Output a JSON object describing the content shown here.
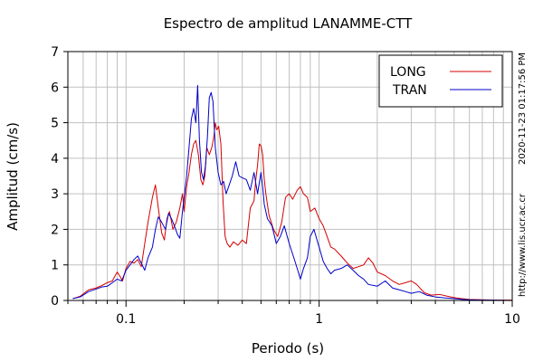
{
  "chart_data": {
    "type": "line",
    "title": "Espectro de amplitud LANAMME-CTT",
    "xlabel": "Periodo (s)",
    "ylabel": "Amplitud (cm/s)",
    "x_scale": "log",
    "xlim": [
      0.05,
      10
    ],
    "ylim": [
      0,
      7
    ],
    "grid": true,
    "legend_placement": "top-right",
    "x_ticks": [
      {
        "value": 0.1,
        "label": "0.1"
      },
      {
        "value": 1,
        "label": "1"
      },
      {
        "value": 10,
        "label": "10"
      }
    ],
    "y_ticks": [
      0,
      1,
      2,
      3,
      4,
      5,
      6,
      7
    ],
    "timestamp": "2020-11-23 01:17:56 PM",
    "url": "http://www.lis.ucr.ac.cr",
    "series": [
      {
        "name": "LONG",
        "color": "#d40000",
        "points": [
          [
            0.053,
            0.05
          ],
          [
            0.058,
            0.12
          ],
          [
            0.064,
            0.3
          ],
          [
            0.07,
            0.35
          ],
          [
            0.075,
            0.42
          ],
          [
            0.08,
            0.5
          ],
          [
            0.085,
            0.55
          ],
          [
            0.09,
            0.8
          ],
          [
            0.093,
            0.68
          ],
          [
            0.096,
            0.55
          ],
          [
            0.1,
            0.9
          ],
          [
            0.105,
            1.1
          ],
          [
            0.11,
            1.05
          ],
          [
            0.115,
            1.15
          ],
          [
            0.12,
            0.95
          ],
          [
            0.125,
            1.6
          ],
          [
            0.13,
            2.2
          ],
          [
            0.137,
            2.9
          ],
          [
            0.142,
            3.25
          ],
          [
            0.147,
            2.6
          ],
          [
            0.153,
            1.9
          ],
          [
            0.158,
            1.7
          ],
          [
            0.163,
            2.3
          ],
          [
            0.168,
            2.5
          ],
          [
            0.175,
            2.0
          ],
          [
            0.182,
            2.2
          ],
          [
            0.19,
            2.6
          ],
          [
            0.196,
            3.0
          ],
          [
            0.2,
            2.5
          ],
          [
            0.206,
            3.2
          ],
          [
            0.212,
            3.6
          ],
          [
            0.218,
            4.1
          ],
          [
            0.224,
            4.4
          ],
          [
            0.23,
            4.5
          ],
          [
            0.237,
            4.1
          ],
          [
            0.244,
            3.4
          ],
          [
            0.25,
            3.25
          ],
          [
            0.256,
            3.5
          ],
          [
            0.262,
            4.3
          ],
          [
            0.27,
            4.1
          ],
          [
            0.278,
            4.3
          ],
          [
            0.285,
            4.6
          ],
          [
            0.29,
            5.0
          ],
          [
            0.295,
            4.8
          ],
          [
            0.302,
            4.9
          ],
          [
            0.31,
            4.4
          ],
          [
            0.318,
            2.8
          ],
          [
            0.326,
            1.8
          ],
          [
            0.334,
            1.6
          ],
          [
            0.345,
            1.5
          ],
          [
            0.36,
            1.65
          ],
          [
            0.38,
            1.55
          ],
          [
            0.4,
            1.7
          ],
          [
            0.42,
            1.6
          ],
          [
            0.44,
            2.6
          ],
          [
            0.46,
            2.8
          ],
          [
            0.47,
            3.4
          ],
          [
            0.48,
            3.8
          ],
          [
            0.49,
            4.4
          ],
          [
            0.5,
            4.35
          ],
          [
            0.51,
            4.1
          ],
          [
            0.52,
            3.4
          ],
          [
            0.53,
            3.0
          ],
          [
            0.55,
            2.4
          ],
          [
            0.58,
            2.0
          ],
          [
            0.61,
            1.8
          ],
          [
            0.64,
            2.2
          ],
          [
            0.67,
            2.9
          ],
          [
            0.7,
            3.0
          ],
          [
            0.73,
            2.85
          ],
          [
            0.77,
            3.1
          ],
          [
            0.8,
            3.2
          ],
          [
            0.83,
            3.0
          ],
          [
            0.87,
            2.9
          ],
          [
            0.9,
            2.5
          ],
          [
            0.95,
            2.6
          ],
          [
            1.0,
            2.3
          ],
          [
            1.05,
            2.1
          ],
          [
            1.1,
            1.8
          ],
          [
            1.15,
            1.5
          ],
          [
            1.2,
            1.45
          ],
          [
            1.3,
            1.25
          ],
          [
            1.4,
            1.05
          ],
          [
            1.5,
            0.9
          ],
          [
            1.6,
            0.95
          ],
          [
            1.7,
            1.0
          ],
          [
            1.8,
            1.2
          ],
          [
            1.9,
            1.05
          ],
          [
            2.0,
            0.8
          ],
          [
            2.2,
            0.7
          ],
          [
            2.4,
            0.55
          ],
          [
            2.6,
            0.45
          ],
          [
            2.8,
            0.5
          ],
          [
            3.0,
            0.55
          ],
          [
            3.2,
            0.45
          ],
          [
            3.5,
            0.22
          ],
          [
            3.8,
            0.15
          ],
          [
            4.2,
            0.17
          ],
          [
            4.6,
            0.12
          ],
          [
            5.0,
            0.08
          ],
          [
            5.5,
            0.05
          ],
          [
            6.0,
            0.03
          ],
          [
            7.0,
            0.02
          ],
          [
            8.0,
            0.01
          ],
          [
            10.0,
            0.01
          ]
        ]
      },
      {
        "name": "TRAN",
        "color": "#0000c8",
        "points": [
          [
            0.053,
            0.05
          ],
          [
            0.058,
            0.1
          ],
          [
            0.064,
            0.25
          ],
          [
            0.07,
            0.32
          ],
          [
            0.075,
            0.38
          ],
          [
            0.08,
            0.4
          ],
          [
            0.085,
            0.5
          ],
          [
            0.09,
            0.6
          ],
          [
            0.095,
            0.55
          ],
          [
            0.1,
            0.85
          ],
          [
            0.105,
            1.0
          ],
          [
            0.11,
            1.15
          ],
          [
            0.115,
            1.25
          ],
          [
            0.12,
            1.05
          ],
          [
            0.125,
            0.85
          ],
          [
            0.13,
            1.2
          ],
          [
            0.137,
            1.5
          ],
          [
            0.142,
            2.0
          ],
          [
            0.147,
            2.35
          ],
          [
            0.153,
            2.2
          ],
          [
            0.16,
            2.0
          ],
          [
            0.166,
            2.45
          ],
          [
            0.172,
            2.3
          ],
          [
            0.178,
            2.1
          ],
          [
            0.185,
            1.85
          ],
          [
            0.19,
            1.75
          ],
          [
            0.196,
            2.5
          ],
          [
            0.2,
            2.9
          ],
          [
            0.206,
            3.5
          ],
          [
            0.212,
            4.3
          ],
          [
            0.218,
            5.1
          ],
          [
            0.224,
            5.4
          ],
          [
            0.23,
            5.0
          ],
          [
            0.235,
            6.05
          ],
          [
            0.24,
            4.5
          ],
          [
            0.246,
            3.6
          ],
          [
            0.252,
            3.4
          ],
          [
            0.258,
            3.8
          ],
          [
            0.264,
            4.6
          ],
          [
            0.27,
            5.7
          ],
          [
            0.276,
            5.85
          ],
          [
            0.282,
            5.6
          ],
          [
            0.29,
            4.3
          ],
          [
            0.3,
            3.6
          ],
          [
            0.31,
            3.25
          ],
          [
            0.32,
            3.35
          ],
          [
            0.33,
            3.0
          ],
          [
            0.34,
            3.2
          ],
          [
            0.355,
            3.5
          ],
          [
            0.37,
            3.9
          ],
          [
            0.385,
            3.5
          ],
          [
            0.4,
            3.45
          ],
          [
            0.42,
            3.4
          ],
          [
            0.44,
            3.1
          ],
          [
            0.46,
            3.6
          ],
          [
            0.48,
            3.0
          ],
          [
            0.5,
            3.6
          ],
          [
            0.51,
            3.2
          ],
          [
            0.52,
            2.7
          ],
          [
            0.54,
            2.3
          ],
          [
            0.57,
            2.1
          ],
          [
            0.6,
            1.6
          ],
          [
            0.63,
            1.8
          ],
          [
            0.66,
            2.1
          ],
          [
            0.7,
            1.6
          ],
          [
            0.74,
            1.2
          ],
          [
            0.77,
            0.9
          ],
          [
            0.8,
            0.6
          ],
          [
            0.83,
            0.9
          ],
          [
            0.87,
            1.2
          ],
          [
            0.9,
            1.8
          ],
          [
            0.94,
            2.0
          ],
          [
            1.0,
            1.5
          ],
          [
            1.05,
            1.1
          ],
          [
            1.1,
            0.9
          ],
          [
            1.15,
            0.75
          ],
          [
            1.2,
            0.85
          ],
          [
            1.3,
            0.9
          ],
          [
            1.4,
            1.0
          ],
          [
            1.5,
            0.85
          ],
          [
            1.6,
            0.7
          ],
          [
            1.7,
            0.6
          ],
          [
            1.8,
            0.45
          ],
          [
            2.0,
            0.4
          ],
          [
            2.2,
            0.55
          ],
          [
            2.4,
            0.35
          ],
          [
            2.6,
            0.3
          ],
          [
            2.8,
            0.25
          ],
          [
            3.0,
            0.2
          ],
          [
            3.3,
            0.25
          ],
          [
            3.6,
            0.15
          ],
          [
            4.0,
            0.1
          ],
          [
            4.5,
            0.07
          ],
          [
            5.0,
            0.05
          ],
          [
            5.5,
            0.03
          ],
          [
            6.0,
            0.02
          ],
          [
            7.0,
            0.01
          ],
          [
            8.0,
            0.01
          ],
          [
            10.0,
            0.0
          ]
        ]
      }
    ]
  }
}
